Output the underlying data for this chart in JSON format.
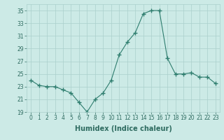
{
  "x": [
    0,
    1,
    2,
    3,
    4,
    5,
    6,
    7,
    8,
    9,
    10,
    11,
    12,
    13,
    14,
    15,
    16,
    17,
    18,
    19,
    20,
    21,
    22,
    23
  ],
  "y": [
    24.0,
    23.2,
    23.0,
    23.0,
    22.5,
    22.0,
    20.5,
    19.0,
    21.0,
    22.0,
    24.0,
    28.0,
    30.0,
    31.5,
    34.5,
    35.0,
    35.0,
    27.5,
    25.0,
    25.0,
    25.2,
    24.5,
    24.5,
    23.5
  ],
  "line_color": "#2e7d6e",
  "marker": "+",
  "marker_size": 4,
  "bg_color": "#cceae6",
  "grid_color": "#aacfcc",
  "xlabel": "Humidex (Indice chaleur)",
  "ylim": [
    19,
    36
  ],
  "yticks": [
    19,
    21,
    23,
    25,
    27,
    29,
    31,
    33,
    35
  ],
  "xticks": [
    0,
    1,
    2,
    3,
    4,
    5,
    6,
    7,
    8,
    9,
    10,
    11,
    12,
    13,
    14,
    15,
    16,
    17,
    18,
    19,
    20,
    21,
    22,
    23
  ],
  "xlabel_fontsize": 7,
  "tick_fontsize": 5.5,
  "xlabel_color": "#2e6b60",
  "tick_color": "#2e6b60"
}
